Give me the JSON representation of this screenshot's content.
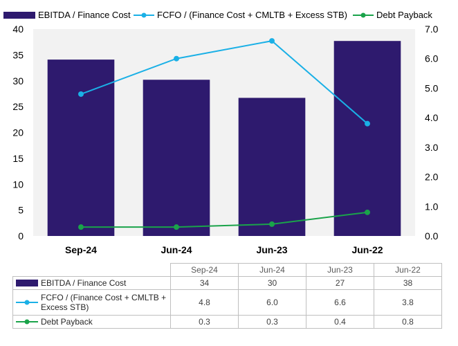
{
  "colors": {
    "ebitda": "#2e1a6e",
    "fcfo": "#1ab0e6",
    "debt": "#1aa34a",
    "plot_bg": "#f2f2f2"
  },
  "legend": {
    "ebitda": "EBITDA / Finance Cost",
    "fcfo": "FCFO / (Finance Cost + CMLTB + Excess STB)",
    "debt": "Debt Payback"
  },
  "chart_data": {
    "type": "bar",
    "categories": [
      "Sep-24",
      "Jun-24",
      "Jun-23",
      "Jun-22"
    ],
    "series": [
      {
        "name": "EBITDA / Finance Cost",
        "type": "bar",
        "axis": "left",
        "values": [
          34,
          30,
          27,
          38
        ],
        "plotted_values": [
          34.1,
          30.2,
          26.7,
          37.7
        ]
      },
      {
        "name": "FCFO / (Finance Cost + CMLTB + Excess STB)",
        "type": "line",
        "axis": "right",
        "values": [
          4.8,
          6.0,
          6.6,
          3.8
        ]
      },
      {
        "name": "Debt Payback",
        "type": "line",
        "axis": "right",
        "values": [
          0.3,
          0.3,
          0.4,
          0.8
        ]
      }
    ],
    "y_left": {
      "range": [
        0,
        40
      ],
      "ticks": [
        "0",
        "5",
        "10",
        "15",
        "20",
        "25",
        "30",
        "35",
        "40"
      ]
    },
    "y_right": {
      "range": [
        0,
        7
      ],
      "ticks": [
        "0.0",
        "1.0",
        "2.0",
        "3.0",
        "4.0",
        "5.0",
        "6.0",
        "7.0"
      ]
    },
    "grid": false,
    "legend_position": "top"
  },
  "table": {
    "headers": [
      "Sep-24",
      "Jun-24",
      "Jun-23",
      "Jun-22"
    ],
    "rows": [
      {
        "label": "EBITDA / Finance Cost",
        "values": [
          "34",
          "30",
          "27",
          "38"
        ]
      },
      {
        "label": "FCFO / (Finance Cost + CMLTB + Excess STB)",
        "values": [
          "4.8",
          "6.0",
          "6.6",
          "3.8"
        ]
      },
      {
        "label": "Debt Payback",
        "values": [
          "0.3",
          "0.3",
          "0.4",
          "0.8"
        ]
      }
    ]
  }
}
